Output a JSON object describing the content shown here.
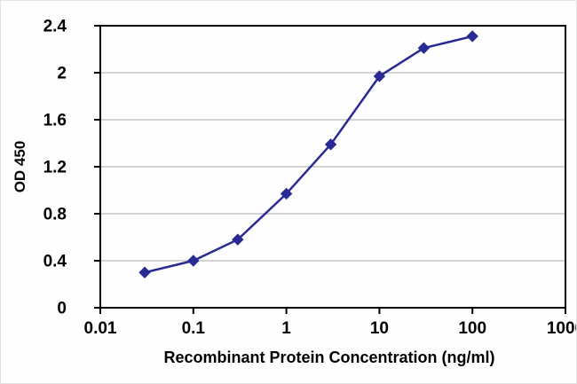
{
  "chart_data": {
    "type": "line",
    "title": "",
    "xlabel": "Recombinant Protein Concentration (ng/ml)",
    "ylabel": "OD 450",
    "x_scale": "log",
    "xlim": [
      0.01,
      1000
    ],
    "ylim": [
      0,
      2.4
    ],
    "x_ticks": [
      0.01,
      0.1,
      1,
      10,
      100,
      1000
    ],
    "x_tick_labels": [
      "0.01",
      "0.1",
      "1",
      "10",
      "100",
      "1000"
    ],
    "y_ticks": [
      0,
      0.4,
      0.8,
      1.2,
      1.6,
      2,
      2.4
    ],
    "y_tick_labels": [
      "0",
      "0.4",
      "0.8",
      "1.2",
      "1.6",
      "2",
      "2.4"
    ],
    "grid": "horizontal",
    "legend": "none",
    "grid_color": "#a8a8a8",
    "axis_color": "#000000",
    "series": [
      {
        "name": "OD450",
        "marker": "diamond",
        "color": "#2a2a94",
        "x": [
          0.03,
          0.1,
          0.3,
          1,
          3,
          10,
          30,
          100
        ],
        "y": [
          0.3,
          0.4,
          0.58,
          0.97,
          1.39,
          1.97,
          2.21,
          2.31
        ]
      }
    ]
  }
}
